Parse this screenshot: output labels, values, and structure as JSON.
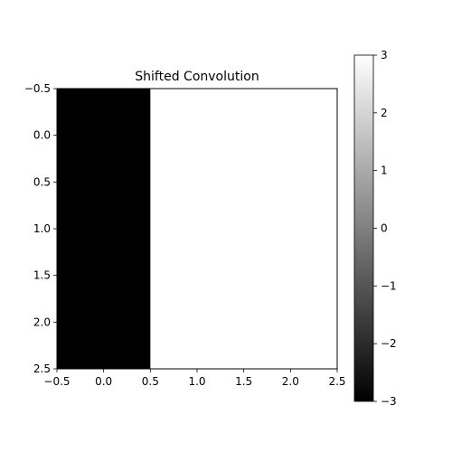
{
  "chart_data": {
    "type": "heatmap",
    "title": "Shifted Convolution",
    "xlabel": "",
    "ylabel": "",
    "matrix": [
      [
        -3,
        3,
        3
      ],
      [
        -3,
        3,
        3
      ],
      [
        -3,
        3,
        3
      ]
    ],
    "xlim": [
      -0.5,
      2.5
    ],
    "ylim": [
      2.5,
      -0.5
    ],
    "x_ticks": [
      -0.5,
      0.0,
      0.5,
      1.0,
      1.5,
      2.0,
      2.5
    ],
    "x_tick_labels": [
      "−0.5",
      "0.0",
      "0.5",
      "1.0",
      "1.5",
      "2.0",
      "2.5"
    ],
    "y_ticks": [
      -0.5,
      0.0,
      0.5,
      1.0,
      1.5,
      2.0,
      2.5
    ],
    "y_tick_labels": [
      "−0.5",
      "0.0",
      "0.5",
      "1.0",
      "1.5",
      "2.0",
      "2.5"
    ],
    "colormap": "gray",
    "colorbar": {
      "range": [
        -3,
        3
      ],
      "ticks": [
        3,
        2,
        1,
        0,
        -1,
        -2,
        -3
      ],
      "tick_labels": [
        "3",
        "2",
        "1",
        "0",
        "−1",
        "−2",
        "−3"
      ],
      "low_color": "#000000",
      "high_color": "#ffffff"
    },
    "grid": false
  }
}
